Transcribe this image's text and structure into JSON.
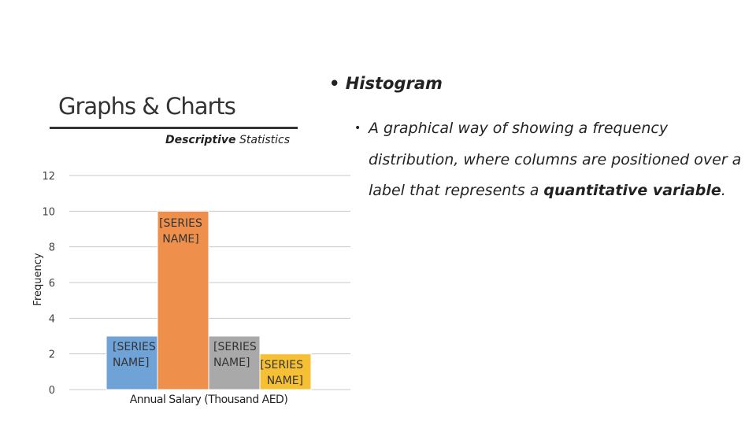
{
  "slide": {
    "title": "Graphs & Charts",
    "subtitle_bold": "Descriptive",
    "subtitle_rest": " Statistics",
    "bullet": "Histogram",
    "description": {
      "lines": [
        "A graphical way of showing a frequency",
        "distribution, where columns are positioned over a"
      ],
      "last_line": "label that represents a ",
      "emphasis": "quantitative variable",
      "end": "."
    }
  },
  "chart_data": {
    "type": "bar",
    "x_label": "Annual Salary (Thousand AED)",
    "y_label": "Frequency",
    "categories": [
      null,
      null,
      null,
      null
    ],
    "values": [
      3,
      10,
      3,
      2
    ],
    "data_labels": [
      "[SERIES NAME]",
      "[SERIES NAME]",
      "[SERIES NAME]",
      "[SERIES NAME]"
    ],
    "colors": [
      "#6fa3d8",
      "#ef8f4c",
      "#a9a9a9",
      "#f5c033"
    ],
    "ylim": [
      0,
      12
    ],
    "yticks": [
      0,
      2,
      4,
      6,
      8,
      10,
      12
    ],
    "grid": true
  }
}
